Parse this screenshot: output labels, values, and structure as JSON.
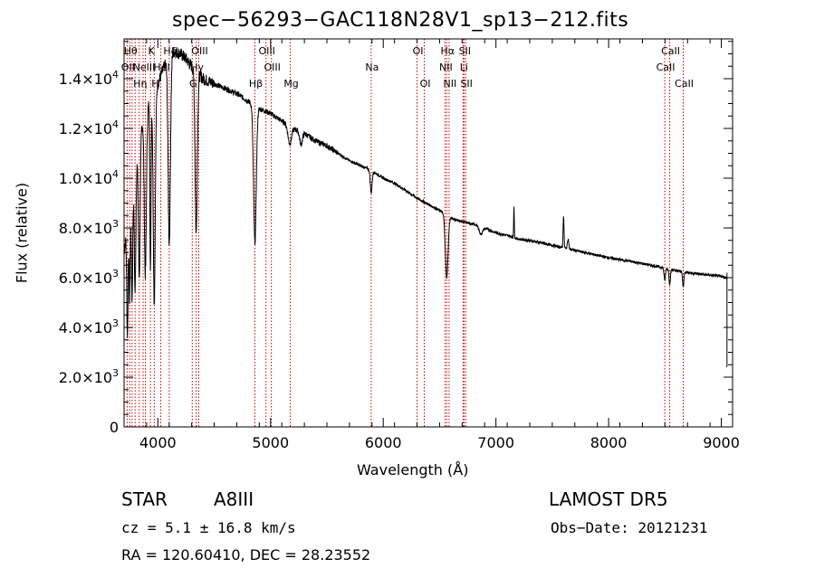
{
  "title": "spec−56293−GAC118N28V1_sp13−212.fits",
  "info": {
    "class_label": "STAR",
    "subclass": "A8III",
    "survey": "LAMOST DR5",
    "redshift": "cz = 5.1 ± 16.8 km/s",
    "obs_date": "Obs−Date: 20121231",
    "coords": "RA = 120.60410, DEC =  28.23552"
  },
  "colors": {
    "axes": "#000000",
    "spectrum": "#000000",
    "line_marker": "#cc0000"
  },
  "chart_data": {
    "type": "line",
    "xlabel": "Wavelength (Å)",
    "ylabel": "Flux (relative)",
    "xlim": [
      3700,
      9100
    ],
    "ylim": [
      0,
      15600
    ],
    "xticks": [
      {
        "v": 4000,
        "label": "4000"
      },
      {
        "v": 5000,
        "label": "5000"
      },
      {
        "v": 6000,
        "label": "6000"
      },
      {
        "v": 7000,
        "label": "7000"
      },
      {
        "v": 8000,
        "label": "8000"
      },
      {
        "v": 9000,
        "label": "9000"
      }
    ],
    "yticks": [
      {
        "v": 0,
        "mant": "0",
        "exp": ""
      },
      {
        "v": 2000,
        "mant": "2.0×10",
        "exp": "3"
      },
      {
        "v": 4000,
        "mant": "4.0×10",
        "exp": "3"
      },
      {
        "v": 6000,
        "mant": "6.0×10",
        "exp": "3"
      },
      {
        "v": 8000,
        "mant": "8.0×10",
        "exp": "3"
      },
      {
        "v": 10000,
        "mant": "1.0×10",
        "exp": "4"
      },
      {
        "v": 12000,
        "mant": "1.2×10",
        "exp": "4"
      },
      {
        "v": 14000,
        "mant": "1.4×10",
        "exp": "4"
      }
    ],
    "continuum": [
      [
        3700,
        7000
      ],
      [
        3750,
        9000
      ],
      [
        3800,
        10500
      ],
      [
        3850,
        12000
      ],
      [
        3900,
        12800
      ],
      [
        3950,
        13300
      ],
      [
        4000,
        13800
      ],
      [
        4050,
        14400
      ],
      [
        4100,
        14900
      ],
      [
        4150,
        15100
      ],
      [
        4200,
        15000
      ],
      [
        4250,
        14800
      ],
      [
        4300,
        14500
      ],
      [
        4400,
        14000
      ],
      [
        4500,
        13800
      ],
      [
        4600,
        13600
      ],
      [
        4700,
        13400
      ],
      [
        4800,
        13100
      ],
      [
        4900,
        12800
      ],
      [
        5000,
        12600
      ],
      [
        5100,
        12300
      ],
      [
        5200,
        12000
      ],
      [
        5300,
        11800
      ],
      [
        5400,
        11500
      ],
      [
        5500,
        11300
      ],
      [
        5600,
        11000
      ],
      [
        5700,
        10700
      ],
      [
        5800,
        10500
      ],
      [
        5900,
        10300
      ],
      [
        6000,
        10000
      ],
      [
        6100,
        9800
      ],
      [
        6200,
        9500
      ],
      [
        6300,
        9200
      ],
      [
        6400,
        8950
      ],
      [
        6500,
        8700
      ],
      [
        6600,
        8400
      ],
      [
        6700,
        8250
      ],
      [
        6800,
        8150
      ],
      [
        6900,
        8000
      ],
      [
        7000,
        7800
      ],
      [
        7100,
        7700
      ],
      [
        7200,
        7550
      ],
      [
        7300,
        7500
      ],
      [
        7400,
        7400
      ],
      [
        7500,
        7300
      ],
      [
        7600,
        7200
      ],
      [
        7700,
        7100
      ],
      [
        7800,
        7000
      ],
      [
        7900,
        6900
      ],
      [
        8000,
        6800
      ],
      [
        8200,
        6650
      ],
      [
        8400,
        6480
      ],
      [
        8600,
        6280
      ],
      [
        8800,
        6150
      ],
      [
        9000,
        6050
      ],
      [
        9050,
        6000
      ]
    ],
    "features": [
      {
        "w": 3730,
        "depth": -4500,
        "width": 6
      },
      {
        "w": 3750,
        "depth": -4000,
        "width": 5
      },
      {
        "w": 3771,
        "depth": -4500,
        "width": 6
      },
      {
        "w": 3798,
        "depth": -5000,
        "width": 7
      },
      {
        "w": 3835,
        "depth": -5500,
        "width": 8
      },
      {
        "w": 3889,
        "depth": -6500,
        "width": 9
      },
      {
        "w": 3934,
        "depth": -7000,
        "width": 5
      },
      {
        "w": 3968,
        "depth": -8500,
        "width": 9
      },
      {
        "w": 4101,
        "depth": -7500,
        "width": 10
      },
      {
        "w": 4340,
        "depth": -6500,
        "width": 10
      },
      {
        "w": 4861,
        "depth": -5500,
        "width": 12
      },
      {
        "w": 5170,
        "depth": -700,
        "width": 15
      },
      {
        "w": 5270,
        "depth": -500,
        "width": 12
      },
      {
        "w": 5893,
        "depth": -900,
        "width": 8
      },
      {
        "w": 6563,
        "depth": -2500,
        "width": 12
      },
      {
        "w": 6867,
        "depth": -300,
        "width": 15
      },
      {
        "w": 7160,
        "depth": 1200,
        "width": 3
      },
      {
        "w": 7600,
        "depth": 1300,
        "width": 4
      },
      {
        "w": 7640,
        "depth": 400,
        "width": 6
      },
      {
        "w": 8498,
        "depth": -500,
        "width": 6
      },
      {
        "w": 8542,
        "depth": -600,
        "width": 6
      },
      {
        "w": 8662,
        "depth": -600,
        "width": 6
      }
    ],
    "tail_spike": {
      "w": 9050,
      "value": 2400
    },
    "lines": [
      {
        "w": 3727,
        "label": "OII",
        "row": 1
      },
      {
        "w": 3750,
        "label": "Hθ",
        "row": 0
      },
      {
        "w": 3771,
        "label": "",
        "row": 0
      },
      {
        "w": 3798,
        "label": "",
        "row": 0
      },
      {
        "w": 3835,
        "label": "Hη",
        "row": 2
      },
      {
        "w": 3869,
        "label": "NeIII",
        "row": 1
      },
      {
        "w": 3889,
        "label": "",
        "row": 2
      },
      {
        "w": 3934,
        "label": "K",
        "row": 0
      },
      {
        "w": 3968,
        "label": "H",
        "row": 2
      },
      {
        "w": 4026,
        "label": "HeI",
        "row": 1
      },
      {
        "w": 4101,
        "label": "Hδ",
        "row": 0
      },
      {
        "w": 4305,
        "label": "G",
        "row": 2
      },
      {
        "w": 4340,
        "label": "Hγ",
        "row": 1
      },
      {
        "w": 4363,
        "label": "OIII",
        "row": 0
      },
      {
        "w": 4861,
        "label": "Hβ",
        "row": 2
      },
      {
        "w": 4959,
        "label": "OIII",
        "row": 0
      },
      {
        "w": 5007,
        "label": "OIII",
        "row": 1
      },
      {
        "w": 5175,
        "label": "Mg",
        "row": 2
      },
      {
        "w": 5893,
        "label": "Na",
        "row": 1
      },
      {
        "w": 6300,
        "label": "OI",
        "row": 0
      },
      {
        "w": 6364,
        "label": "OI",
        "row": 2
      },
      {
        "w": 6548,
        "label": "NII",
        "row": 1
      },
      {
        "w": 6563,
        "label": "Hα",
        "row": 0
      },
      {
        "w": 6584,
        "label": "NII",
        "row": 2
      },
      {
        "w": 6708,
        "label": "Li",
        "row": 1
      },
      {
        "w": 6716,
        "label": "SII",
        "row": 0
      },
      {
        "w": 6731,
        "label": "SII",
        "row": 2
      },
      {
        "w": 8498,
        "label": "CaII",
        "row": 1
      },
      {
        "w": 8542,
        "label": "CaII",
        "row": 0
      },
      {
        "w": 8662,
        "label": "CaII",
        "row": 2
      }
    ]
  }
}
